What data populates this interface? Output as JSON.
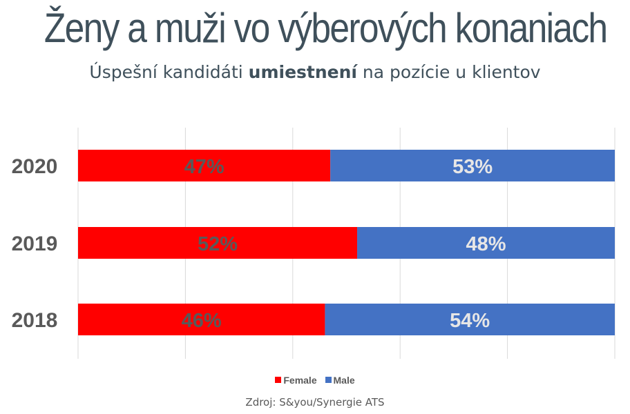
{
  "header": {
    "title": "Ženy a muži vo výberových konaniach",
    "subtitle_pre": "Úspešní kandidáti ",
    "subtitle_bold": "umiestnení",
    "subtitle_post": " na pozície u klientov"
  },
  "chart_data": {
    "type": "bar",
    "orientation": "horizontal",
    "stacked": true,
    "categories": [
      "2020",
      "2019",
      "2018"
    ],
    "series": [
      {
        "name": "Female",
        "values": [
          47,
          52,
          46
        ],
        "labels": [
          "47%",
          "52%",
          "46%"
        ],
        "color": "#ff0000",
        "label_color": "#595959"
      },
      {
        "name": "Male",
        "values": [
          53,
          48,
          54
        ],
        "labels": [
          "53%",
          "48%",
          "54%"
        ],
        "color": "#4472c4",
        "label_color": "#e7e6e6"
      }
    ],
    "xlim": [
      0,
      100
    ],
    "grid": true,
    "legend_position": "bottom"
  },
  "source": "Zdroj: S&you/Synergie ATS"
}
